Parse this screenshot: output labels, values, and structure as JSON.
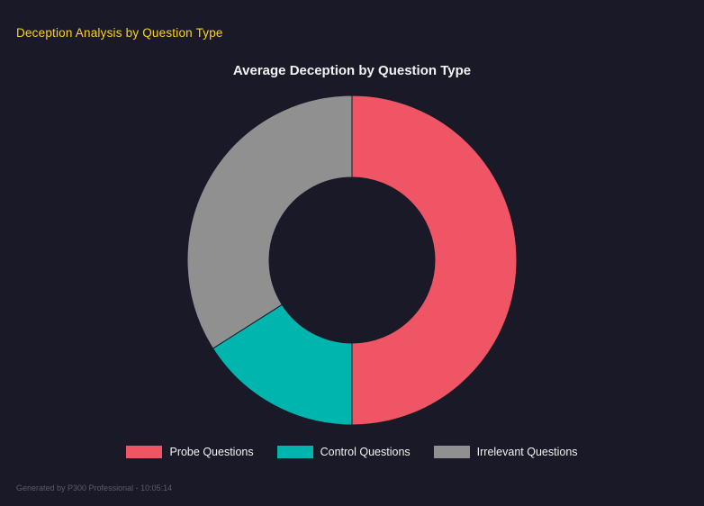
{
  "header": {
    "title": "Deception Analysis by Question Type",
    "color": "#ffd21e"
  },
  "chart_data": {
    "type": "pie",
    "subtype": "donut",
    "title": "Average Deception by Question Type",
    "categories": [
      "Probe Questions",
      "Control Questions",
      "Irrelevant Questions"
    ],
    "values": [
      50,
      16,
      34
    ],
    "values_note": "estimated percent share of donut ring; no numeric labels shown on chart",
    "colors": [
      "#ef5564",
      "#00b5ad",
      "#909090"
    ],
    "inner_radius_ratio": 0.5,
    "start_angle_deg": 0,
    "direction": "clockwise",
    "legend_position": "bottom",
    "background": "#191927",
    "title_color": "#f2f2f2",
    "legend_text_color": "#f2f2f2"
  },
  "footer": {
    "text": "Generated by P300 Professional - 10:05:14",
    "color": "#5b5b6e"
  }
}
